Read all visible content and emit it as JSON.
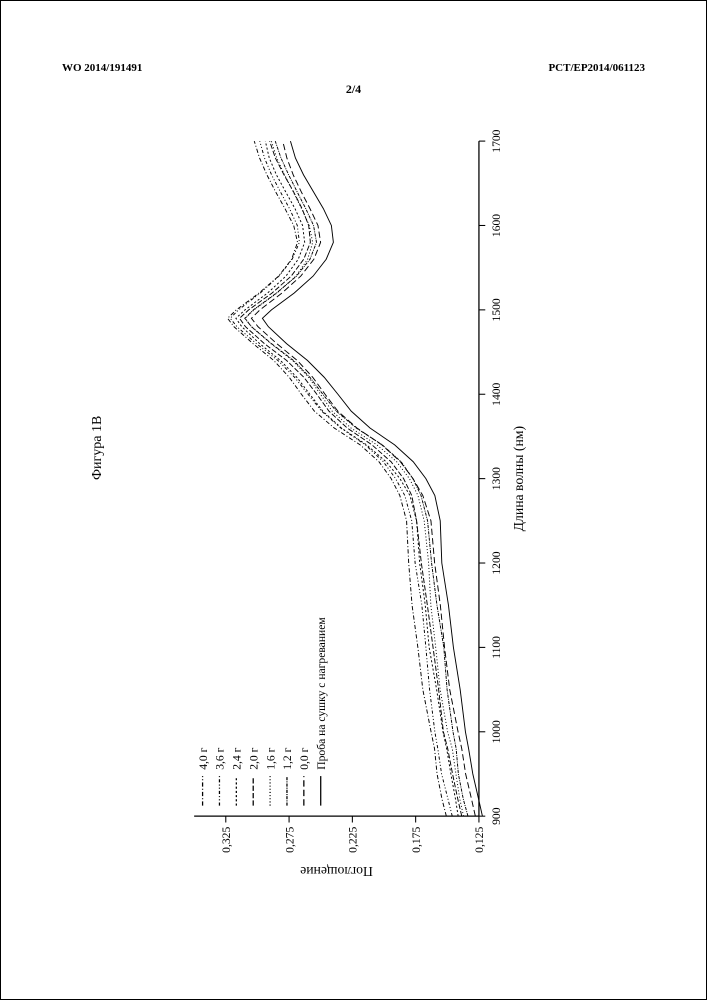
{
  "header": {
    "left": "WO 2014/191491",
    "right": "PCT/EP2014/061123",
    "page_num": "2/4"
  },
  "figure_caption": "Фигура 1В",
  "chart": {
    "type": "line",
    "x_axis_label": "Длина волны (нм)",
    "y_axis_label": "Поглощение",
    "x_ticks": [
      "900",
      "1000",
      "1100",
      "1200",
      "1300",
      "1400",
      "1500",
      "1600",
      "1700"
    ],
    "y_ticks": [
      "0,125",
      "0,175",
      "0,225",
      "0,275",
      "0,325"
    ],
    "xlim": [
      900,
      1700
    ],
    "ylim": [
      0.125,
      0.35
    ],
    "legend": [
      {
        "label": "4,0 г",
        "dash": "4,2,1,2"
      },
      {
        "label": "3,6 г",
        "dash": "3,2,1,2,1,2"
      },
      {
        "label": "2,4 г",
        "dash": "2,2"
      },
      {
        "label": "2,0 г",
        "dash": "5,2"
      },
      {
        "label": "1,6 г",
        "dash": "1,2"
      },
      {
        "label": "1,2 г",
        "dash": "3,1,1,1"
      },
      {
        "label": "0,0 г",
        "dash": "6,3"
      },
      {
        "label": "Проба на сушку с нагреванием",
        "dash": ""
      }
    ],
    "series_color": "#000000",
    "background_color": "#ffffff",
    "axis_color": "#000000",
    "font_size_ticks": 11,
    "font_size_labels": 13,
    "font_size_legend": 11,
    "line_width": 0.9,
    "baseline_points": [
      [
        900,
        0.13
      ],
      [
        920,
        0.133
      ],
      [
        950,
        0.137
      ],
      [
        980,
        0.14
      ],
      [
        1000,
        0.143
      ],
      [
        1050,
        0.148
      ],
      [
        1100,
        0.152
      ],
      [
        1150,
        0.156
      ],
      [
        1200,
        0.16
      ],
      [
        1250,
        0.163
      ],
      [
        1280,
        0.168
      ],
      [
        1300,
        0.175
      ],
      [
        1320,
        0.185
      ],
      [
        1340,
        0.2
      ],
      [
        1360,
        0.22
      ],
      [
        1380,
        0.235
      ],
      [
        1400,
        0.245
      ],
      [
        1420,
        0.255
      ],
      [
        1440,
        0.268
      ],
      [
        1460,
        0.285
      ],
      [
        1480,
        0.3
      ],
      [
        1490,
        0.305
      ],
      [
        1500,
        0.298
      ],
      [
        1520,
        0.28
      ],
      [
        1540,
        0.265
      ],
      [
        1560,
        0.255
      ],
      [
        1580,
        0.25
      ],
      [
        1600,
        0.252
      ],
      [
        1620,
        0.258
      ],
      [
        1640,
        0.265
      ],
      [
        1660,
        0.272
      ],
      [
        1680,
        0.278
      ],
      [
        1700,
        0.282
      ]
    ],
    "series_offsets": [
      0.02,
      0.016,
      0.012,
      0.009,
      0.006,
      0.003,
      0.0,
      -0.008
    ]
  }
}
